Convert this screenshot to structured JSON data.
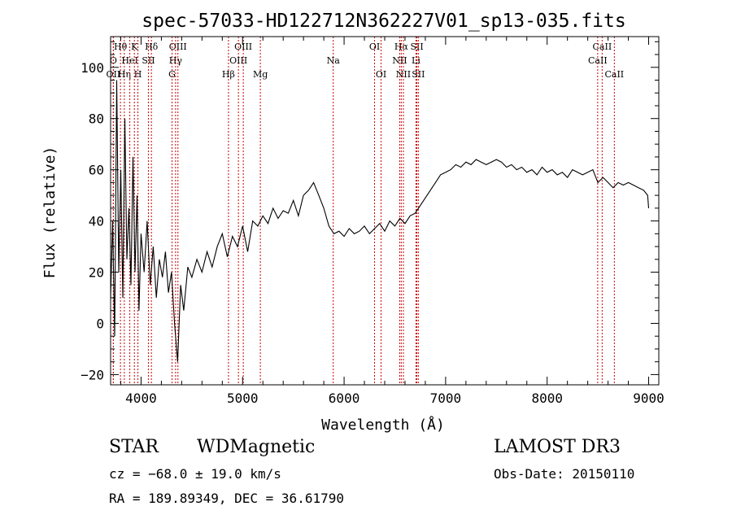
{
  "title": "spec-57033-HD122712N362227V01_sp13-035.fits",
  "info": {
    "object_class": "STAR",
    "subclass": "WDMagnetic",
    "survey": "LAMOST DR3",
    "cz": "cz = −68.0 ± 19.0 km/s",
    "obs_date": "Obs-Date: 20150110",
    "coords": "RA = 189.89349, DEC =  36.61790"
  },
  "chart_data": {
    "type": "line",
    "title": "spec-57033-HD122712N362227V01_sp13-035.fits",
    "xlabel": "Wavelength (Å)",
    "ylabel": "Flux (relative)",
    "xlim": [
      3700,
      9100
    ],
    "ylim": [
      -24,
      112
    ],
    "xticks": [
      4000,
      5000,
      6000,
      7000,
      8000,
      9000
    ],
    "xtick_labels": [
      "4000",
      "5000",
      "6000",
      "7000",
      "8000",
      "9000"
    ],
    "yticks": [
      -20,
      0,
      20,
      40,
      60,
      80,
      100
    ],
    "ytick_labels": [
      "−20",
      "0",
      "20",
      "40",
      "60",
      "80",
      "100"
    ],
    "grid": false,
    "line_color": "#000000",
    "marker_color": "#cc0000",
    "series": [
      {
        "x": [
          3700,
          3720,
          3740,
          3760,
          3780,
          3800,
          3820,
          3840,
          3860,
          3880,
          3900,
          3920,
          3940,
          3960,
          3980,
          4000,
          4030,
          4060,
          4090,
          4120,
          4150,
          4180,
          4210,
          4240,
          4270,
          4300,
          4330,
          4360,
          4390,
          4420,
          4460,
          4500,
          4550,
          4600,
          4650,
          4700,
          4750,
          4800,
          4850,
          4900,
          4950,
          5000,
          5050,
          5100,
          5150,
          5200,
          5250,
          5300,
          5350,
          5400,
          5450,
          5500,
          5550,
          5600,
          5650,
          5700,
          5750,
          5800,
          5850,
          5900,
          5950,
          6000,
          6050,
          6100,
          6150,
          6200,
          6250,
          6300,
          6350,
          6400,
          6450,
          6500,
          6550,
          6600,
          6650,
          6700,
          6750,
          6800,
          6850,
          6900,
          6950,
          7000,
          7050,
          7100,
          7150,
          7200,
          7250,
          7300,
          7350,
          7400,
          7450,
          7500,
          7550,
          7600,
          7650,
          7700,
          7750,
          7800,
          7850,
          7900,
          7950,
          8000,
          8050,
          8100,
          8150,
          8200,
          8250,
          8300,
          8350,
          8400,
          8450,
          8500,
          8550,
          8600,
          8650,
          8700,
          8750,
          8800,
          8850,
          8900,
          8950,
          8990,
          9000
        ],
        "y": [
          10,
          40,
          -5,
          95,
          20,
          60,
          10,
          80,
          25,
          45,
          15,
          65,
          20,
          50,
          5,
          35,
          20,
          40,
          15,
          30,
          10,
          25,
          18,
          28,
          12,
          20,
          0,
          -15,
          15,
          5,
          22,
          18,
          25,
          20,
          28,
          22,
          30,
          35,
          26,
          34,
          30,
          38,
          28,
          40,
          38,
          42,
          39,
          45,
          41,
          44,
          43,
          48,
          42,
          50,
          52,
          55,
          50,
          45,
          38,
          35,
          36,
          34,
          37,
          35,
          36,
          38,
          35,
          37,
          39,
          36,
          40,
          38,
          41,
          39,
          42,
          43,
          46,
          49,
          52,
          55,
          58,
          59,
          60,
          62,
          61,
          63,
          62,
          64,
          63,
          62,
          63,
          64,
          63,
          61,
          62,
          60,
          61,
          59,
          60,
          58,
          61,
          59,
          60,
          58,
          59,
          57,
          60,
          59,
          58,
          59,
          60,
          55,
          57,
          55,
          53,
          55,
          54,
          55,
          54,
          53,
          52,
          50,
          45
        ]
      }
    ],
    "line_markers": [
      {
        "label": "Hθ",
        "x": 3797,
        "row": 1
      },
      {
        "label": "O",
        "x": 3727,
        "row": 2
      },
      {
        "label": "OII",
        "x": 3727,
        "row": 3
      },
      {
        "label": "Hη",
        "x": 3835,
        "row": 3
      },
      {
        "label": "HeI",
        "x": 3889,
        "row": 2
      },
      {
        "label": "K",
        "x": 3934,
        "row": 1
      },
      {
        "label": "H",
        "x": 3969,
        "row": 3
      },
      {
        "label": "SII",
        "x": 4072,
        "row": 2
      },
      {
        "label": "Hδ",
        "x": 4102,
        "row": 1
      },
      {
        "label": "OIII",
        "x": 4363,
        "row": 1
      },
      {
        "label": "Hγ",
        "x": 4340,
        "row": 2
      },
      {
        "label": "G",
        "x": 4305,
        "row": 3
      },
      {
        "label": "Hβ",
        "x": 4861,
        "row": 3
      },
      {
        "label": "OIII",
        "x": 5007,
        "row": 1
      },
      {
        "label": "OIII",
        "x": 4959,
        "row": 2
      },
      {
        "label": "Mg",
        "x": 5175,
        "row": 3
      },
      {
        "label": "Na",
        "x": 5893,
        "row": 2
      },
      {
        "label": "OI",
        "x": 6300,
        "row": 1
      },
      {
        "label": "OI",
        "x": 6364,
        "row": 3
      },
      {
        "label": "Hα",
        "x": 6563,
        "row": 1
      },
      {
        "label": "NII",
        "x": 6548,
        "row": 2
      },
      {
        "label": "NII",
        "x": 6584,
        "row": 3
      },
      {
        "label": "SII",
        "x": 6717,
        "row": 1
      },
      {
        "label": "Li",
        "x": 6708,
        "row": 2
      },
      {
        "label": "SII",
        "x": 6731,
        "row": 3
      },
      {
        "label": "CaII",
        "x": 8542,
        "row": 1
      },
      {
        "label": "CaII",
        "x": 8498,
        "row": 2
      },
      {
        "label": "CaII",
        "x": 8662,
        "row": 3
      }
    ]
  }
}
